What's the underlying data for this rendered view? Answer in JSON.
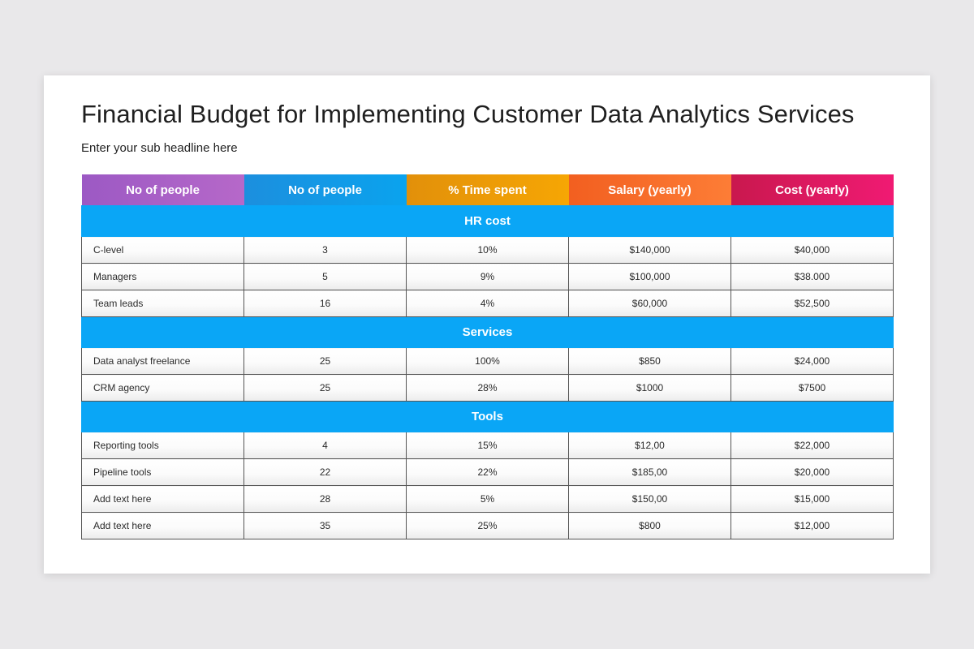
{
  "slide": {
    "title": "Financial Budget for Implementing Customer Data Analytics Services",
    "subtitle": "Enter your sub headline here"
  },
  "table": {
    "headers": [
      "No of people",
      "No of people",
      "% Time spent",
      "Salary (yearly)",
      "Cost (yearly)"
    ],
    "header_colors": [
      "#a95ec7",
      "#0f99e6",
      "#ec9b07",
      "#f76c2a",
      "#de1962"
    ],
    "sections": [
      {
        "title": "HR cost",
        "rows": [
          [
            "C-level",
            "3",
            "10%",
            "$140,000",
            "$40,000"
          ],
          [
            "Managers",
            "5",
            "9%",
            "$100,000",
            "$38.000"
          ],
          [
            "Team leads",
            "16",
            "4%",
            "$60,000",
            "$52,500"
          ]
        ]
      },
      {
        "title": "Services",
        "rows": [
          [
            "Data analyst freelance",
            "25",
            "100%",
            "$850",
            "$24,000"
          ],
          [
            "CRM agency",
            "25",
            "28%",
            "$1000",
            "$7500"
          ]
        ]
      },
      {
        "title": "Tools",
        "rows": [
          [
            "Reporting tools",
            "4",
            "15%",
            "$12,00",
            "$22,000"
          ],
          [
            "Pipeline tools",
            "22",
            "22%",
            "$185,00",
            "$20,000"
          ],
          [
            "Add text here",
            "28",
            "5%",
            "$150,00",
            "$15,000"
          ],
          [
            "Add text here",
            "35",
            "25%",
            "$800",
            "$12,000"
          ]
        ]
      }
    ],
    "section_color": "#0aa6f6"
  }
}
